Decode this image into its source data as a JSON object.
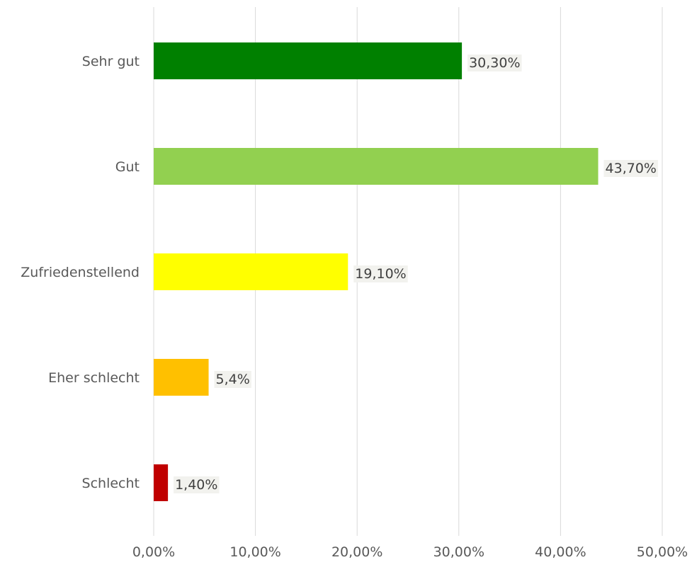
{
  "chart_data": {
    "type": "bar",
    "orientation": "horizontal",
    "categories": [
      "Sehr gut",
      "Gut",
      "Zufriedenstellend",
      "Eher schlecht",
      "Schlecht"
    ],
    "values": [
      30.3,
      43.7,
      19.1,
      5.4,
      1.4
    ],
    "data_labels": [
      "30,30%",
      "43,70%",
      "19,10%",
      "5,4%",
      "1,40%"
    ],
    "bar_colors": [
      "#008000",
      "#92d050",
      "#ffff00",
      "#ffc000",
      "#c00000"
    ],
    "x_ticks": [
      0,
      10,
      20,
      30,
      40,
      50
    ],
    "x_tick_labels": [
      "0,00%",
      "10,00%",
      "20,00%",
      "30,00%",
      "40,00%",
      "50,00%"
    ],
    "xlim": [
      0,
      50
    ],
    "grid": true,
    "legend": "none",
    "title": "",
    "xlabel": "",
    "ylabel": ""
  }
}
